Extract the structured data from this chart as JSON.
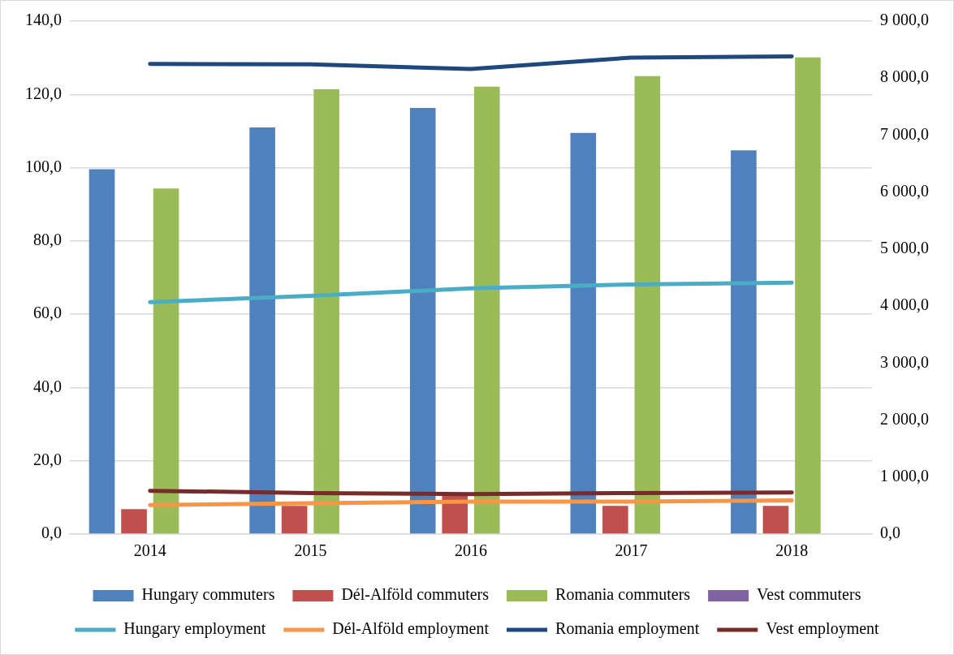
{
  "chart_data": {
    "type": "bar",
    "categories": [
      "2014",
      "2015",
      "2016",
      "2017",
      "2018"
    ],
    "series": [
      {
        "name": "Hungary commuters",
        "color": "#4f81bd",
        "values": [
          99.6,
          111.0,
          116.3,
          109.5,
          104.7
        ]
      },
      {
        "name": "Dél-Alföld commuters",
        "color": "#c0504d",
        "values": [
          6.8,
          7.7,
          11.0,
          7.7,
          7.7
        ]
      },
      {
        "name": "Romania commuters",
        "color": "#9bbb59",
        "values": [
          94.3,
          121.4,
          122.1,
          125.0,
          130.1
        ]
      },
      {
        "name": "Vest commuters",
        "color": "#8064a2",
        "values": [
          0,
          0,
          0,
          0,
          0
        ]
      },
      {
        "name": "Hungary employment",
        "type": "line",
        "axis": "y2",
        "color": "#4bacc6",
        "values": [
          4070,
          4180,
          4310,
          4380,
          4410
        ]
      },
      {
        "name": "Dél-Alföld employment",
        "type": "line",
        "axis": "y2",
        "color": "#f79646",
        "values": [
          510,
          540,
          570,
          570,
          590
        ]
      },
      {
        "name": "Romania employment",
        "type": "line",
        "axis": "y2",
        "color": "#1f497d",
        "values": [
          8250,
          8240,
          8160,
          8360,
          8380
        ]
      },
      {
        "name": "Vest employment",
        "type": "line",
        "axis": "y2",
        "color": "#772c2a",
        "values": [
          760,
          720,
          700,
          720,
          730
        ]
      }
    ],
    "ylim": [
      0,
      140
    ],
    "yticks": [
      {
        "value": 0,
        "label": "0,0"
      },
      {
        "value": 20,
        "label": "20,0"
      },
      {
        "value": 40,
        "label": "40,0"
      },
      {
        "value": 60,
        "label": "60,0"
      },
      {
        "value": 80,
        "label": "80,0"
      },
      {
        "value": 100,
        "label": "100,0"
      },
      {
        "value": 120,
        "label": "120,0"
      },
      {
        "value": 140,
        "label": "140,0"
      }
    ],
    "y2lim": [
      0,
      9000
    ],
    "y2ticks": [
      {
        "value": 0,
        "label": "0,0"
      },
      {
        "value": 1000,
        "label": "1 000,0"
      },
      {
        "value": 2000,
        "label": "2 000,0"
      },
      {
        "value": 3000,
        "label": "3 000,0"
      },
      {
        "value": 4000,
        "label": "4 000,0"
      },
      {
        "value": 5000,
        "label": "5 000,0"
      },
      {
        "value": 6000,
        "label": "6 000,0"
      },
      {
        "value": 7000,
        "label": "7 000,0"
      },
      {
        "value": 8000,
        "label": "8 000,0"
      },
      {
        "value": 9000,
        "label": "9 000,0"
      }
    ],
    "grid": "y",
    "legend": "bottom",
    "marker": "none",
    "line_style": "solid"
  }
}
